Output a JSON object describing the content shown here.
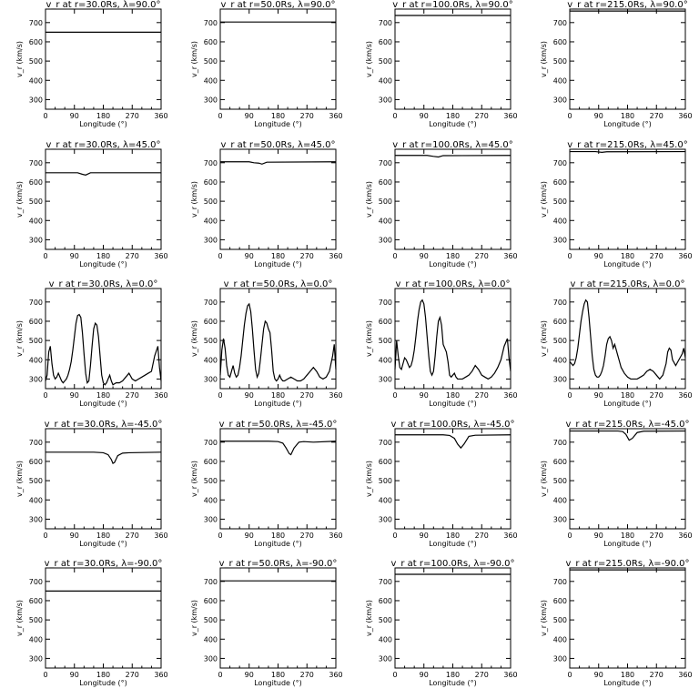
{
  "chart_data": [
    {
      "type": "line",
      "title": "v_r at r=30.0Rs, λ=90.0°",
      "xlabel": "Longitude (°)",
      "ylabel": "v_r (km/s)",
      "xlim": [
        0,
        360
      ],
      "ylim": [
        250,
        770
      ],
      "xticks": [
        0,
        90,
        180,
        270,
        360
      ],
      "yticks": [
        300,
        400,
        500,
        600,
        700
      ],
      "x": [
        0,
        360
      ],
      "y": [
        650,
        650
      ]
    },
    {
      "type": "line",
      "title": "v_r at r=50.0Rs, λ=90.0°",
      "xlabel": "Longitude (°)",
      "ylabel": "v_r (km/s)",
      "xlim": [
        0,
        360
      ],
      "ylim": [
        250,
        770
      ],
      "xticks": [
        0,
        90,
        180,
        270,
        360
      ],
      "yticks": [
        300,
        400,
        500,
        600,
        700
      ],
      "x": [
        0,
        360
      ],
      "y": [
        703,
        703
      ]
    },
    {
      "type": "line",
      "title": "v_r at r=100.0Rs, λ=90.0°",
      "xlabel": "Longitude (°)",
      "ylabel": "v_r (km/s)",
      "xlim": [
        0,
        360
      ],
      "ylim": [
        250,
        770
      ],
      "xticks": [
        0,
        90,
        180,
        270,
        360
      ],
      "yticks": [
        300,
        400,
        500,
        600,
        700
      ],
      "x": [
        0,
        360
      ],
      "y": [
        737,
        737
      ]
    },
    {
      "type": "line",
      "title": "v_r at r=215.0Rs, λ=90.0°",
      "xlabel": "Longitude (°)",
      "ylabel": "v_r (km/s)",
      "xlim": [
        0,
        360
      ],
      "ylim": [
        250,
        770
      ],
      "xticks": [
        0,
        90,
        180,
        270,
        360
      ],
      "yticks": [
        300,
        400,
        500,
        600,
        700
      ],
      "x": [
        0,
        360
      ],
      "y": [
        760,
        760
      ]
    },
    {
      "type": "line",
      "title": "v_r at r=30.0Rs, λ=45.0°",
      "xlabel": "Longitude (°)",
      "ylabel": "v_r (km/s)",
      "xlim": [
        0,
        360
      ],
      "ylim": [
        250,
        770
      ],
      "xticks": [
        0,
        90,
        180,
        270,
        360
      ],
      "yticks": [
        300,
        400,
        500,
        600,
        700
      ],
      "x": [
        0,
        100,
        115,
        125,
        140,
        360
      ],
      "y": [
        648,
        648,
        640,
        636,
        648,
        648
      ]
    },
    {
      "type": "line",
      "title": "v_r at r=50.0Rs, λ=45.0°",
      "xlabel": "Longitude (°)",
      "ylabel": "v_r (km/s)",
      "xlim": [
        0,
        360
      ],
      "ylim": [
        250,
        770
      ],
      "xticks": [
        0,
        90,
        180,
        270,
        360
      ],
      "yticks": [
        300,
        400,
        500,
        600,
        700
      ],
      "x": [
        0,
        90,
        105,
        120,
        130,
        145,
        360
      ],
      "y": [
        705,
        705,
        700,
        698,
        693,
        703,
        705
      ]
    },
    {
      "type": "line",
      "title": "v_r at r=100.0Rs, λ=45.0°",
      "xlabel": "Longitude (°)",
      "ylabel": "v_r (km/s)",
      "xlim": [
        0,
        360
      ],
      "ylim": [
        250,
        770
      ],
      "xticks": [
        0,
        90,
        180,
        270,
        360
      ],
      "yticks": [
        300,
        400,
        500,
        600,
        700
      ],
      "x": [
        0,
        100,
        120,
        135,
        150,
        360
      ],
      "y": [
        738,
        738,
        733,
        730,
        737,
        738
      ]
    },
    {
      "type": "line",
      "title": "v_r at r=215.0Rs, λ=45.0°",
      "xlabel": "Longitude (°)",
      "ylabel": "v_r (km/s)",
      "xlim": [
        0,
        360
      ],
      "ylim": [
        250,
        770
      ],
      "xticks": [
        0,
        90,
        180,
        270,
        360
      ],
      "yticks": [
        300,
        400,
        500,
        600,
        700
      ],
      "x": [
        0,
        80,
        100,
        115,
        360
      ],
      "y": [
        758,
        758,
        754,
        757,
        758
      ]
    },
    {
      "type": "line",
      "title": "v_r at r=30.0Rs, λ=0.0°",
      "xlabel": "Longitude (°)",
      "ylabel": "v_r (km/s)",
      "xlim": [
        0,
        360
      ],
      "ylim": [
        250,
        770
      ],
      "xticks": [
        0,
        90,
        180,
        270,
        360
      ],
      "yticks": [
        300,
        400,
        500,
        600,
        700
      ],
      "x": [
        0,
        5,
        10,
        15,
        20,
        25,
        30,
        35,
        40,
        50,
        55,
        60,
        65,
        70,
        75,
        80,
        85,
        90,
        95,
        100,
        105,
        110,
        115,
        120,
        125,
        130,
        135,
        140,
        145,
        150,
        155,
        160,
        165,
        170,
        175,
        180,
        185,
        190,
        195,
        200,
        205,
        210,
        220,
        230,
        240,
        250,
        260,
        270,
        280,
        290,
        300,
        310,
        320,
        330,
        340,
        350,
        355,
        360
      ],
      "y": [
        290,
        320,
        440,
        470,
        380,
        320,
        300,
        310,
        330,
        290,
        280,
        290,
        300,
        320,
        350,
        390,
        450,
        520,
        590,
        630,
        635,
        620,
        540,
        430,
        330,
        280,
        290,
        370,
        470,
        560,
        590,
        580,
        520,
        420,
        320,
        280,
        270,
        280,
        300,
        320,
        290,
        270,
        280,
        280,
        290,
        310,
        330,
        300,
        290,
        300,
        310,
        320,
        330,
        340,
        420,
        470,
        360,
        290
      ]
    },
    {
      "type": "line",
      "title": "v_r at r=50.0Rs, λ=0.0°",
      "xlabel": "Longitude (°)",
      "ylabel": "v_r (km/s)",
      "xlim": [
        0,
        360
      ],
      "ylim": [
        250,
        770
      ],
      "xticks": [
        0,
        90,
        180,
        270,
        360
      ],
      "yticks": [
        300,
        400,
        500,
        600,
        700
      ],
      "x": [
        0,
        5,
        10,
        15,
        20,
        25,
        30,
        35,
        40,
        45,
        50,
        55,
        60,
        65,
        70,
        75,
        80,
        85,
        90,
        95,
        100,
        105,
        110,
        115,
        120,
        125,
        130,
        135,
        140,
        145,
        150,
        155,
        160,
        165,
        170,
        175,
        180,
        185,
        190,
        195,
        200,
        210,
        220,
        230,
        240,
        250,
        260,
        270,
        280,
        290,
        300,
        310,
        320,
        330,
        340,
        350,
        355,
        360
      ],
      "y": [
        320,
        450,
        510,
        460,
        370,
        320,
        310,
        340,
        370,
        330,
        310,
        320,
        360,
        420,
        500,
        580,
        640,
        680,
        690,
        650,
        560,
        450,
        350,
        310,
        330,
        400,
        480,
        560,
        600,
        590,
        560,
        540,
        450,
        340,
        300,
        290,
        300,
        320,
        300,
        290,
        290,
        300,
        310,
        300,
        290,
        290,
        300,
        320,
        340,
        360,
        340,
        310,
        300,
        310,
        340,
        420,
        480,
        350
      ]
    },
    {
      "type": "line",
      "title": "v_r at r=100.0Rs, λ=0.0°",
      "xlabel": "Longitude (°)",
      "ylabel": "v_r (km/s)",
      "xlim": [
        0,
        360
      ],
      "ylim": [
        250,
        770
      ],
      "xticks": [
        0,
        90,
        180,
        270,
        360
      ],
      "yticks": [
        300,
        400,
        500,
        600,
        700
      ],
      "x": [
        0,
        5,
        10,
        15,
        20,
        25,
        30,
        35,
        40,
        45,
        50,
        55,
        60,
        65,
        70,
        75,
        80,
        85,
        90,
        95,
        100,
        105,
        110,
        115,
        120,
        125,
        130,
        135,
        140,
        145,
        150,
        155,
        160,
        165,
        170,
        175,
        180,
        185,
        190,
        195,
        200,
        210,
        220,
        230,
        240,
        250,
        260,
        270,
        280,
        290,
        300,
        310,
        320,
        330,
        340,
        350,
        355,
        360
      ],
      "y": [
        350,
        500,
        420,
        360,
        350,
        380,
        410,
        400,
        380,
        360,
        370,
        400,
        450,
        520,
        600,
        660,
        700,
        710,
        690,
        620,
        520,
        420,
        340,
        320,
        340,
        420,
        520,
        600,
        620,
        580,
        480,
        460,
        440,
        390,
        320,
        310,
        320,
        330,
        310,
        300,
        300,
        300,
        310,
        320,
        340,
        370,
        350,
        320,
        310,
        300,
        310,
        330,
        360,
        400,
        470,
        510,
        410,
        340
      ]
    },
    {
      "type": "line",
      "title": "v_r at r=215.0Rs, λ=0.0°",
      "xlabel": "Longitude (°)",
      "ylabel": "v_r (km/s)",
      "xlim": [
        0,
        360
      ],
      "ylim": [
        250,
        770
      ],
      "xticks": [
        0,
        90,
        180,
        270,
        360
      ],
      "yticks": [
        300,
        400,
        500,
        600,
        700
      ],
      "x": [
        0,
        5,
        10,
        15,
        20,
        25,
        30,
        35,
        40,
        45,
        50,
        55,
        60,
        65,
        70,
        75,
        80,
        85,
        90,
        95,
        100,
        105,
        110,
        115,
        120,
        125,
        130,
        135,
        140,
        145,
        150,
        155,
        160,
        170,
        180,
        190,
        200,
        210,
        220,
        230,
        240,
        250,
        260,
        270,
        280,
        290,
        300,
        305,
        310,
        315,
        320,
        330,
        340,
        350,
        355,
        360
      ],
      "y": [
        390,
        380,
        370,
        380,
        410,
        460,
        530,
        600,
        650,
        690,
        710,
        700,
        620,
        520,
        420,
        350,
        320,
        310,
        310,
        320,
        340,
        370,
        420,
        480,
        510,
        520,
        500,
        460,
        480,
        450,
        420,
        390,
        360,
        330,
        310,
        300,
        300,
        300,
        310,
        320,
        340,
        350,
        340,
        320,
        300,
        320,
        380,
        440,
        460,
        450,
        400,
        370,
        400,
        430,
        460,
        410
      ]
    },
    {
      "type": "line",
      "title": "v_r at r=30.0Rs, λ=-45.0°",
      "xlabel": "Longitude (°)",
      "ylabel": "v_r (km/s)",
      "xlim": [
        0,
        360
      ],
      "ylim": [
        250,
        770
      ],
      "xticks": [
        0,
        90,
        180,
        270,
        360
      ],
      "yticks": [
        300,
        400,
        500,
        600,
        700
      ],
      "x": [
        0,
        150,
        180,
        195,
        205,
        210,
        215,
        225,
        240,
        260,
        360
      ],
      "y": [
        648,
        648,
        645,
        635,
        610,
        590,
        595,
        630,
        643,
        645,
        648
      ]
    },
    {
      "type": "line",
      "title": "v_r at r=50.0Rs, λ=-45.0°",
      "xlabel": "Longitude (°)",
      "ylabel": "v_r (km/s)",
      "xlim": [
        0,
        360
      ],
      "ylim": [
        250,
        770
      ],
      "xticks": [
        0,
        90,
        180,
        270,
        360
      ],
      "yticks": [
        300,
        400,
        500,
        600,
        700
      ],
      "x": [
        0,
        150,
        180,
        195,
        205,
        215,
        220,
        230,
        245,
        260,
        290,
        360
      ],
      "y": [
        705,
        705,
        703,
        695,
        670,
        640,
        635,
        670,
        700,
        703,
        700,
        705
      ]
    },
    {
      "type": "line",
      "title": "v_r at r=100.0Rs, λ=-45.0°",
      "xlabel": "Longitude (°)",
      "ylabel": "v_r (km/s)",
      "xlim": [
        0,
        360
      ],
      "ylim": [
        250,
        770
      ],
      "xticks": [
        0,
        90,
        180,
        270,
        360
      ],
      "yticks": [
        300,
        400,
        500,
        600,
        700
      ],
      "x": [
        0,
        150,
        170,
        185,
        195,
        205,
        215,
        230,
        250,
        360
      ],
      "y": [
        738,
        738,
        735,
        720,
        690,
        670,
        690,
        730,
        736,
        738
      ]
    },
    {
      "type": "line",
      "title": "v_r at r=215.0Rs, λ=-45.0°",
      "xlabel": "Longitude (°)",
      "ylabel": "v_r (km/s)",
      "xlim": [
        0,
        360
      ],
      "ylim": [
        250,
        770
      ],
      "xticks": [
        0,
        90,
        180,
        270,
        360
      ],
      "yticks": [
        300,
        400,
        500,
        600,
        700
      ],
      "x": [
        0,
        150,
        165,
        175,
        185,
        195,
        210,
        230,
        360
      ],
      "y": [
        758,
        758,
        755,
        740,
        710,
        720,
        750,
        757,
        758
      ]
    },
    {
      "type": "line",
      "title": "v_r at r=30.0Rs, λ=-90.0°",
      "xlabel": "Longitude (°)",
      "ylabel": "v_r (km/s)",
      "xlim": [
        0,
        360
      ],
      "ylim": [
        250,
        770
      ],
      "xticks": [
        0,
        90,
        180,
        270,
        360
      ],
      "yticks": [
        300,
        400,
        500,
        600,
        700
      ],
      "x": [
        0,
        360
      ],
      "y": [
        650,
        650
      ]
    },
    {
      "type": "line",
      "title": "v_r at r=50.0Rs, λ=-90.0°",
      "xlabel": "Longitude (°)",
      "ylabel": "v_r (km/s)",
      "xlim": [
        0,
        360
      ],
      "ylim": [
        250,
        770
      ],
      "xticks": [
        0,
        90,
        180,
        270,
        360
      ],
      "yticks": [
        300,
        400,
        500,
        600,
        700
      ],
      "x": [
        0,
        360
      ],
      "y": [
        703,
        703
      ]
    },
    {
      "type": "line",
      "title": "v_r at r=100.0Rs, λ=-90.0°",
      "xlabel": "Longitude (°)",
      "ylabel": "v_r (km/s)",
      "xlim": [
        0,
        360
      ],
      "ylim": [
        250,
        770
      ],
      "xticks": [
        0,
        90,
        180,
        270,
        360
      ],
      "yticks": [
        300,
        400,
        500,
        600,
        700
      ],
      "x": [
        0,
        360
      ],
      "y": [
        737,
        737
      ]
    },
    {
      "type": "line",
      "title": "v_r at r=215.0Rs, λ=-90.0°",
      "xlabel": "Longitude (°)",
      "ylabel": "v_r (km/s)",
      "xlim": [
        0,
        360
      ],
      "ylim": [
        250,
        770
      ],
      "xticks": [
        0,
        90,
        180,
        270,
        360
      ],
      "yticks": [
        300,
        400,
        500,
        600,
        700
      ],
      "x": [
        0,
        360
      ],
      "y": [
        760,
        760
      ]
    }
  ]
}
